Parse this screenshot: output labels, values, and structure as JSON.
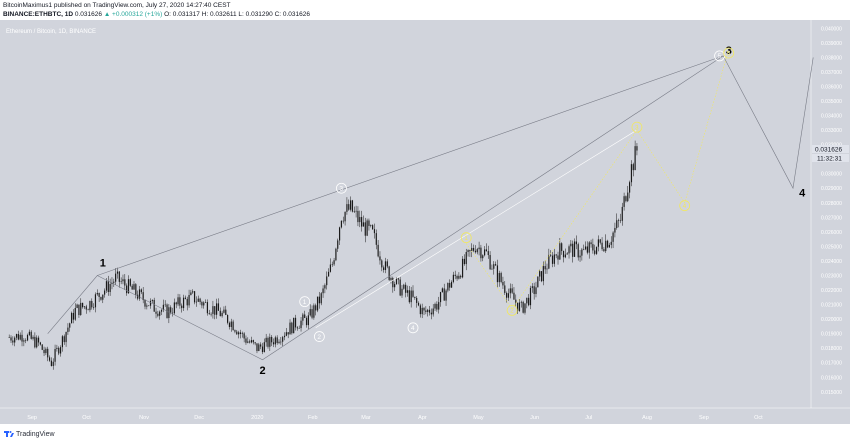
{
  "header": {
    "line1": "BitcoinMaximus1 published on TradingView.com, July 27, 2020 14:27:40 CEST",
    "symbol_label": "BINANCE:ETHBTC, 1D",
    "last_value": "0.031626",
    "change": "▲ +0.000312 (+1%)",
    "ohlc": "O: 0.031317  H: 0.032611  L: 0.031290  C: 0.031626"
  },
  "chart": {
    "watermark": "Ethereum / Bitcoin, 1D, BINANCE",
    "price_label": "0.031626",
    "countdown": "11:32:31",
    "colors": {
      "background": "#d1d4dc",
      "candle": "#1a1a1a",
      "white_wave": "#ffffff",
      "yellow_wave": "#f2e85e",
      "axis_text": "#ffffff"
    }
  },
  "chart_data": {
    "type": "candlestick",
    "symbol": "ETHBTC",
    "interval": "1D",
    "xlabels": [
      "Sep",
      "Oct",
      "Nov",
      "Dec",
      "2020",
      "Feb",
      "Mar",
      "Apr",
      "May",
      "Jun",
      "Jul",
      "Aug",
      "Sep",
      "Oct"
    ],
    "ylabels": [
      "0.040000",
      "0.039000",
      "0.038000",
      "0.037000",
      "0.036000",
      "0.035000",
      "0.034000",
      "0.033000",
      "0.032000",
      "0.031000",
      "0.030000",
      "0.029000",
      "0.028000",
      "0.027000",
      "0.026000",
      "0.025000",
      "0.024000",
      "0.023000",
      "0.022000",
      "0.021000",
      "0.020000",
      "0.019000",
      "0.018000",
      "0.017000",
      "0.016000",
      "0.015000"
    ],
    "ylim": [
      0.0143,
      0.0405
    ],
    "last_price": 0.031626,
    "close_path": [
      [
        "2019-08-20",
        0.01875
      ],
      [
        "2019-08-28",
        0.0189
      ],
      [
        "2019-09-05",
        0.0183
      ],
      [
        "2019-09-12",
        0.017
      ],
      [
        "2019-09-18",
        0.0186
      ],
      [
        "2019-09-25",
        0.0206
      ],
      [
        "2019-10-02",
        0.021
      ],
      [
        "2019-10-10",
        0.0219
      ],
      [
        "2019-10-17",
        0.0228
      ],
      [
        "2019-10-24",
        0.0222
      ],
      [
        "2019-10-31",
        0.0215
      ],
      [
        "2019-11-07",
        0.0208
      ],
      [
        "2019-11-14",
        0.0205
      ],
      [
        "2019-11-21",
        0.0211
      ],
      [
        "2019-11-28",
        0.0215
      ],
      [
        "2019-12-05",
        0.021
      ],
      [
        "2019-12-12",
        0.0205
      ],
      [
        "2019-12-19",
        0.0198
      ],
      [
        "2019-12-26",
        0.0187
      ],
      [
        "2020-01-02",
        0.018
      ],
      [
        "2020-01-09",
        0.0184
      ],
      [
        "2020-01-16",
        0.019
      ],
      [
        "2020-01-23",
        0.0197
      ],
      [
        "2020-01-30",
        0.02
      ],
      [
        "2020-02-06",
        0.0215
      ],
      [
        "2020-02-12",
        0.0238
      ],
      [
        "2020-02-17",
        0.0272
      ],
      [
        "2020-02-22",
        0.0276
      ],
      [
        "2020-02-28",
        0.0265
      ],
      [
        "2020-03-05",
        0.0258
      ],
      [
        "2020-03-12",
        0.0235
      ],
      [
        "2020-03-19",
        0.0222
      ],
      [
        "2020-03-26",
        0.0215
      ],
      [
        "2020-04-02",
        0.0204
      ],
      [
        "2020-04-09",
        0.021
      ],
      [
        "2020-04-16",
        0.0224
      ],
      [
        "2020-04-23",
        0.0236
      ],
      [
        "2020-04-30",
        0.0251
      ],
      [
        "2020-05-06",
        0.0245
      ],
      [
        "2020-05-12",
        0.023
      ],
      [
        "2020-05-18",
        0.0218
      ],
      [
        "2020-05-25",
        0.0207
      ],
      [
        "2020-06-01",
        0.022
      ],
      [
        "2020-06-07",
        0.0236
      ],
      [
        "2020-06-14",
        0.0247
      ],
      [
        "2020-06-21",
        0.0248
      ],
      [
        "2020-06-28",
        0.0246
      ],
      [
        "2020-07-05",
        0.025
      ],
      [
        "2020-07-12",
        0.0255
      ],
      [
        "2020-07-18",
        0.0268
      ],
      [
        "2020-07-23",
        0.03
      ],
      [
        "2020-07-27",
        0.031626
      ]
    ],
    "annotations": [
      {
        "text": "1",
        "type": "wave-label",
        "date": "2019-10-10",
        "price": 0.0239
      },
      {
        "text": "2",
        "type": "wave-label",
        "date": "2020-01-05",
        "price": 0.0165
      },
      {
        "text": "3",
        "type": "wave-label",
        "date": "2020-09-15",
        "price": 0.0385
      },
      {
        "text": "4",
        "type": "wave-label",
        "date": "2020-10-25",
        "price": 0.0287
      },
      {
        "text": "1",
        "type": "circle-white",
        "date": "2020-01-28",
        "price": 0.0212
      },
      {
        "text": "2",
        "type": "circle-white",
        "date": "2020-02-05",
        "price": 0.0188
      },
      {
        "text": "3",
        "type": "circle-white",
        "date": "2020-02-17",
        "price": 0.029
      },
      {
        "text": "4",
        "type": "circle-white",
        "date": "2020-03-27",
        "price": 0.0194
      },
      {
        "text": "5",
        "type": "circle-white",
        "date": "2020-09-10",
        "price": 0.0381
      },
      {
        "text": "1",
        "type": "circle-yellow",
        "date": "2020-04-25",
        "price": 0.0256
      },
      {
        "text": "2",
        "type": "circle-yellow",
        "date": "2020-05-20",
        "price": 0.0206
      },
      {
        "text": "3",
        "type": "circle-yellow",
        "date": "2020-07-27",
        "price": 0.0332
      },
      {
        "text": "4",
        "type": "circle-yellow",
        "date": "2020-08-22",
        "price": 0.0278
      },
      {
        "text": "5",
        "type": "circle-yellow",
        "date": "2020-09-15",
        "price": 0.0383
      }
    ]
  },
  "footer": {
    "brand": "TradingView"
  }
}
